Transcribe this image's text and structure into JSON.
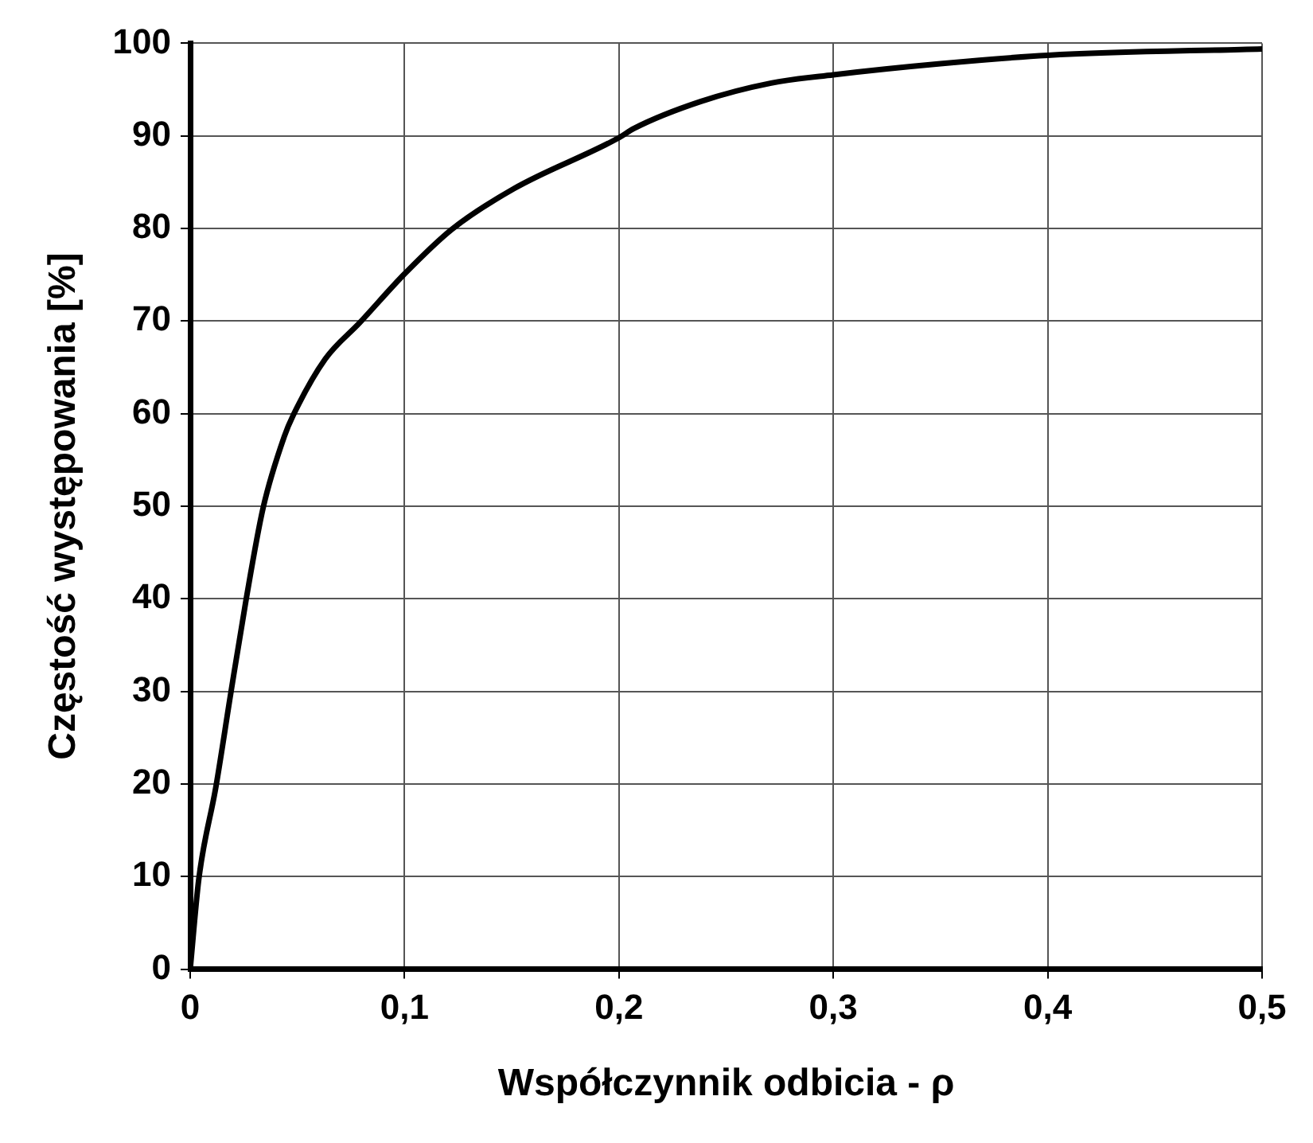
{
  "chart_data": {
    "type": "line",
    "xlabel": "Współczynnik odbicia - ρ",
    "ylabel": "Częstość występowania [%]",
    "x": [
      0,
      0.004,
      0.012,
      0.019,
      0.026,
      0.034,
      0.044,
      0.048,
      0.063,
      0.079,
      0.1,
      0.122,
      0.151,
      0.2,
      0.207,
      0.238,
      0.271,
      0.3,
      0.35,
      0.4,
      0.5
    ],
    "series": [
      {
        "color": "#000000",
        "values": [
          0,
          9.7,
          19.7,
          29.9,
          39.8,
          49.8,
          57.6,
          59.8,
          65.9,
          69.8,
          75.1,
          79.9,
          84.3,
          89.8,
          90.8,
          93.7,
          95.7,
          96.6,
          97.8,
          98.7,
          99.4
        ]
      }
    ],
    "xlim": [
      0,
      0.5
    ],
    "xticks": [
      {
        "value": 0,
        "label": "0"
      },
      {
        "value": 0.1,
        "label": "0,1"
      },
      {
        "value": 0.2,
        "label": "0,2"
      },
      {
        "value": 0.3,
        "label": "0,3"
      },
      {
        "value": 0.4,
        "label": "0,4"
      },
      {
        "value": 0.5,
        "label": "0,5"
      }
    ],
    "ylim": [
      0,
      100
    ],
    "yticks": [
      0,
      10,
      20,
      30,
      40,
      50,
      60,
      70,
      80,
      90,
      100
    ],
    "grid": true,
    "legend": false,
    "marker": "none",
    "line_style": "solid"
  }
}
